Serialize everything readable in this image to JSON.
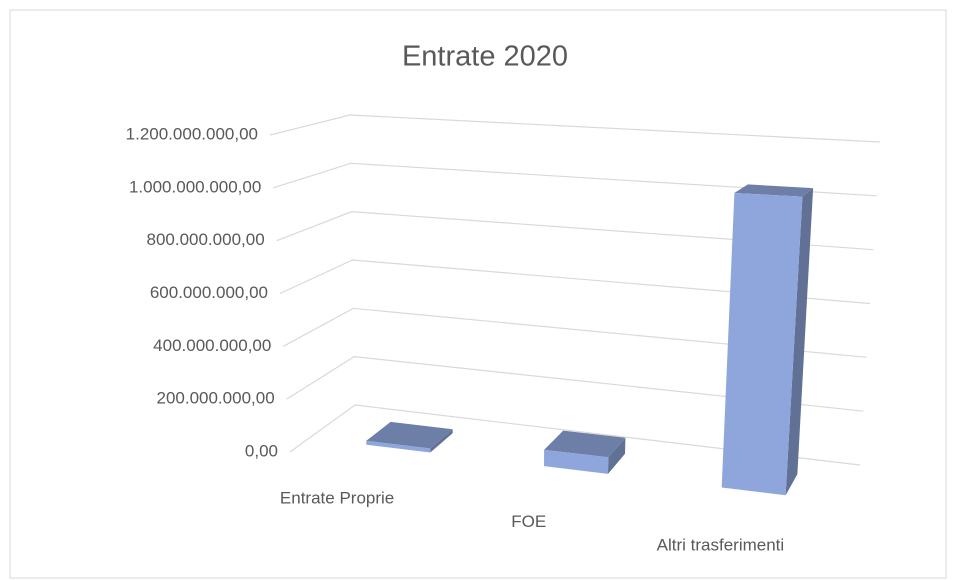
{
  "chart_data": {
    "type": "bar3d",
    "title": "Entrate 2020",
    "categories": [
      "Entrate Proprie",
      "FOE",
      "Altri trasferimenti"
    ],
    "values": [
      15000000,
      60000000,
      1040000000
    ],
    "color": "#8fa6dc",
    "ylim": [
      0,
      1200000000
    ],
    "yticks": [
      {
        "value": 0,
        "label": "0,00"
      },
      {
        "value": 200000000,
        "label": "200.000.000,00"
      },
      {
        "value": 400000000,
        "label": "400.000.000,00"
      },
      {
        "value": 600000000,
        "label": "600.000.000,00"
      },
      {
        "value": 800000000,
        "label": "800.000.000,00"
      },
      {
        "value": 1000000000,
        "label": "1.000.000.000,00"
      },
      {
        "value": 1200000000,
        "label": "1.200.000.000,00"
      }
    ],
    "grid": true
  }
}
